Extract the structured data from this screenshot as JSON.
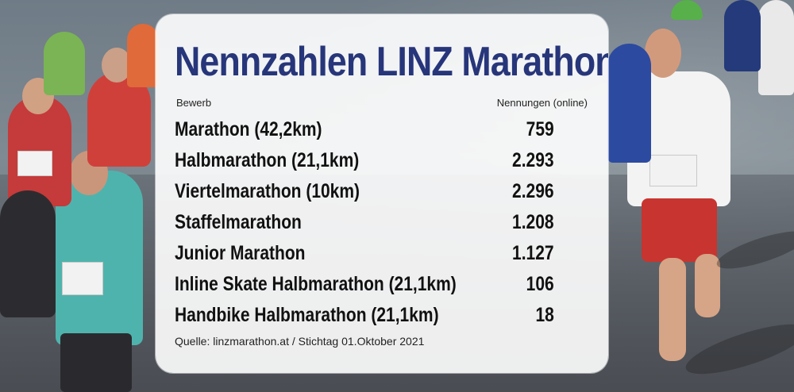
{
  "title": "Nennzahlen LINZ Marathon",
  "header": {
    "left": "Bewerb",
    "right": "Nennungen (online)"
  },
  "rows": [
    {
      "name": "Marathon (42,2km)",
      "value": "759"
    },
    {
      "name": "Halbmarathon (21,1km)",
      "value": "2.293"
    },
    {
      "name": "Viertelmarathon (10km)",
      "value": "2.296"
    },
    {
      "name": "Staffelmarathon",
      "value": "1.208"
    },
    {
      "name": "Junior Marathon",
      "value": "1.127"
    },
    {
      "name": "Inline Skate Halbmarathon (21,1km)",
      "value": "106"
    },
    {
      "name": "Handbike Halbmarathon (21,1km)",
      "value": "18"
    }
  ],
  "source": "Quelle: linzmarathon.at / Stichtag 01.Oktober 2021",
  "colors": {
    "title": "#27367a",
    "card": "#ffffff",
    "text": "#111111"
  }
}
